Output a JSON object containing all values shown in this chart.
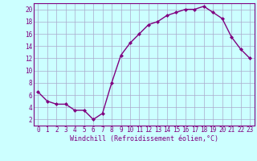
{
  "x": [
    0,
    1,
    2,
    3,
    4,
    5,
    6,
    7,
    8,
    9,
    10,
    11,
    12,
    13,
    14,
    15,
    16,
    17,
    18,
    19,
    20,
    21,
    22,
    23
  ],
  "y": [
    6.5,
    5,
    4.5,
    4.5,
    3.5,
    3.5,
    2,
    3,
    8,
    12.5,
    14.5,
    16,
    17.5,
    18,
    19,
    19.5,
    20,
    20,
    20.5,
    19.5,
    18.5,
    15.5,
    13.5,
    12
  ],
  "line_color": "#800080",
  "marker": "D",
  "marker_size": 2,
  "bg_color": "#ccffff",
  "grid_color": "#aaaacc",
  "xlabel": "Windchill (Refroidissement éolien,°C)",
  "xlabel_fontsize": 6,
  "ylabel_ticks": [
    2,
    4,
    6,
    8,
    10,
    12,
    14,
    16,
    18,
    20
  ],
  "xtick_labels": [
    "0",
    "1",
    "2",
    "3",
    "4",
    "5",
    "6",
    "7",
    "8",
    "9",
    "10",
    "11",
    "12",
    "13",
    "14",
    "15",
    "16",
    "17",
    "18",
    "19",
    "20",
    "21",
    "22",
    "23"
  ],
  "ylim": [
    1,
    21
  ],
  "xlim": [
    -0.5,
    23.5
  ],
  "tick_fontsize": 5.5,
  "line_width": 1.0
}
